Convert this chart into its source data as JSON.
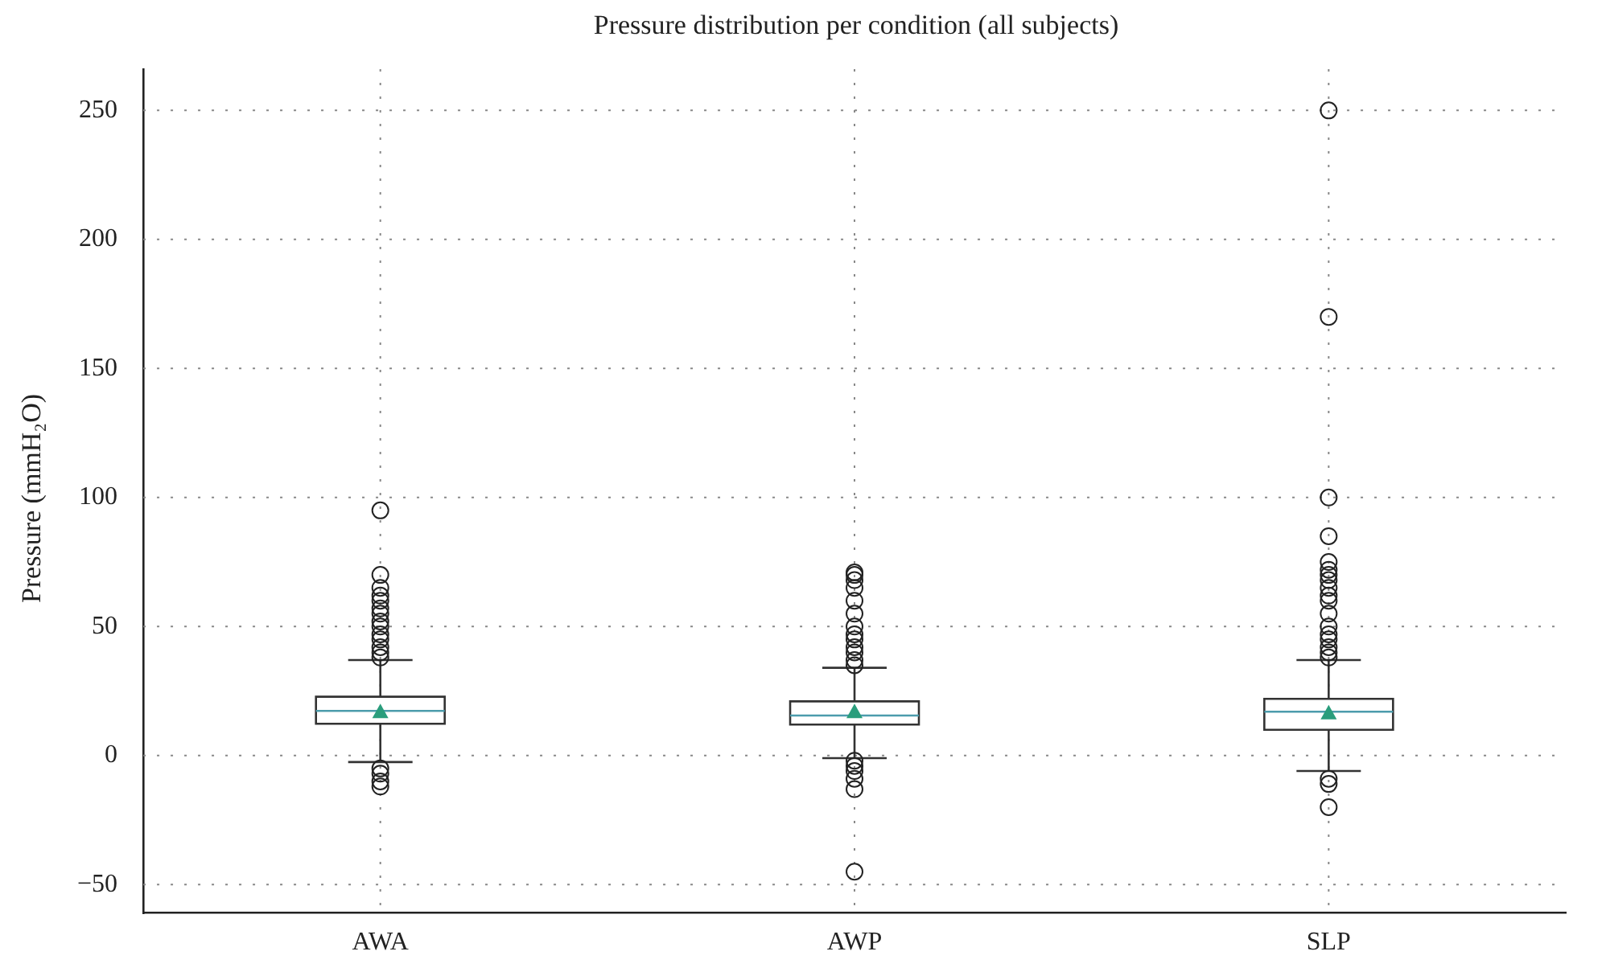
{
  "chart_data": {
    "type": "box",
    "title": "Pressure distribution per condition (all subjects)",
    "ylabel": "Pressure (mmH₂O)",
    "categories": [
      "AWA",
      "AWP",
      "SLP"
    ],
    "boxes": [
      {
        "low": -2.5,
        "q1": 12.3,
        "median": 17.3,
        "q3": 22.8,
        "high": 37,
        "mean": 17,
        "outliers": [
          95,
          70,
          65,
          62,
          60,
          57,
          55,
          52,
          50,
          47,
          45,
          42,
          40,
          38,
          -5,
          -7,
          -10,
          -12
        ]
      },
      {
        "low": -1,
        "q1": 12,
        "median": 15.5,
        "q3": 21,
        "high": 34,
        "mean": 17,
        "outliers": [
          71,
          70,
          68,
          65,
          60,
          55,
          50,
          47,
          45,
          42,
          40,
          37,
          35,
          -2,
          -4,
          -6,
          -9,
          -13,
          -45
        ]
      },
      {
        "low": -6,
        "q1": 10,
        "median": 17,
        "q3": 22,
        "high": 37,
        "mean": 16.5,
        "outliers": [
          250,
          170,
          100,
          85,
          75,
          72,
          70,
          68,
          65,
          62,
          60,
          55,
          50,
          47,
          45,
          42,
          40,
          38,
          -9,
          -11,
          -20
        ]
      }
    ],
    "ylim": [
      -61,
      266
    ],
    "yticks": [
      -50,
      0,
      50,
      100,
      150,
      200,
      250
    ],
    "grid": true,
    "marker": "triangle",
    "legend": false
  }
}
